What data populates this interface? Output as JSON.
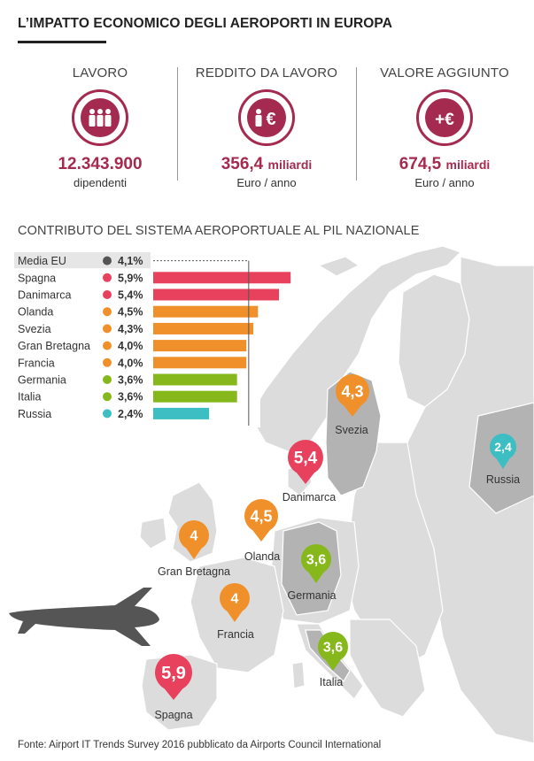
{
  "title": "L’IMPATTO ECONOMICO DEGLI AEROPORTI IN EUROPA",
  "stats": [
    {
      "label": "LAVORO",
      "icon": "workers-icon",
      "value": "12.343.900",
      "unit": "",
      "sub": "dipendenti"
    },
    {
      "label": "REDDITO DA LAVORO",
      "icon": "worker-euro-icon",
      "value": "356,4",
      "unit": "miliardi",
      "sub": "Euro / anno"
    },
    {
      "label": "VALORE AGGIUNTO",
      "icon": "plus-euro-icon",
      "value": "674,5",
      "unit": "miliardi",
      "sub": "Euro / anno"
    }
  ],
  "section_title": "CONTRIBUTO DEL SISTEMA AEROPORTUALE AL PIL NAZIONALE",
  "chart_data": {
    "type": "bar",
    "orientation": "horizontal",
    "categories": [
      "Media EU",
      "Spagna",
      "Danimarca",
      "Olanda",
      "Svezia",
      "Gran Bretagna",
      "Francia",
      "Germania",
      "Italia",
      "Russia"
    ],
    "values": [
      4.1,
      5.9,
      5.4,
      4.5,
      4.3,
      4.0,
      4.0,
      3.6,
      3.6,
      2.4
    ],
    "value_labels": [
      "4,1%",
      "5,9%",
      "5,4%",
      "4,5%",
      "4,3%",
      "4,0%",
      "4,0%",
      "3,6%",
      "3,6%",
      "2,4%"
    ],
    "colors": [
      "#555555",
      "#e8415e",
      "#e8415e",
      "#f0902a",
      "#f0902a",
      "#f0902a",
      "#f0902a",
      "#86b81b",
      "#86b81b",
      "#3cbec3"
    ],
    "reference_line": 4.1,
    "xlim": [
      0,
      6.5
    ]
  },
  "map_markers": [
    {
      "country": "Svezia",
      "value": "4,3",
      "color": "#f0902a"
    },
    {
      "country": "Russia",
      "value": "2,4",
      "color": "#3cbec3"
    },
    {
      "country": "Danimarca",
      "value": "5,4",
      "color": "#e8415e"
    },
    {
      "country": "Olanda",
      "value": "4,5",
      "color": "#f0902a"
    },
    {
      "country": "Gran Bretagna",
      "value": "4",
      "color": "#f0902a"
    },
    {
      "country": "Germania",
      "value": "3,6",
      "color": "#86b81b"
    },
    {
      "country": "Francia",
      "value": "4",
      "color": "#f0902a"
    },
    {
      "country": "Italia",
      "value": "3,6",
      "color": "#86b81b"
    },
    {
      "country": "Spagna",
      "value": "5,9",
      "color": "#e8415e"
    }
  ],
  "colors": {
    "accent": "#a52a4f",
    "map_land": "#dcdcdc",
    "map_land_highlight": "#b3b3b3"
  },
  "source": "Fonte: Airport IT Trends Survey 2016 pubblicato da Airports Council International"
}
